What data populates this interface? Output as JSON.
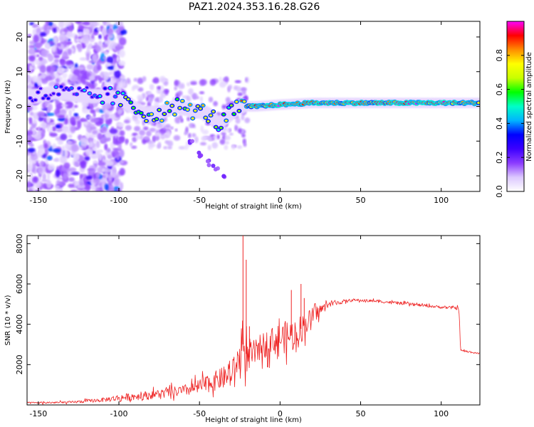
{
  "figure_title": "PAZ1.2024.353.16.28.G26",
  "chart_data": [
    {
      "type": "heatmap",
      "xlabel": "Height of straight line (km)",
      "ylabel": "Frequency (Hz)",
      "xlim": [
        -157,
        124
      ],
      "ylim": [
        -24.5,
        24.5
      ],
      "xticks": [
        -150,
        -100,
        -50,
        0,
        50,
        100
      ],
      "yticks": [
        -20,
        -10,
        0,
        10,
        20
      ],
      "colorbar": {
        "label": "Normalized spectral amplitude",
        "range": [
          0,
          1
        ],
        "ticks": [
          0.0,
          0.2,
          0.4,
          0.6,
          0.8
        ],
        "colormap": [
          "#ffffff",
          "#dcc8ff",
          "#8c3cff",
          "#3c00ff",
          "#0000ff",
          "#00b4ff",
          "#00ffc8",
          "#00ff00",
          "#c8ff00",
          "#ffff00",
          "#ff8c00",
          "#ff0000",
          "#ff00ff"
        ]
      },
      "ridge": [
        {
          "x": -150,
          "y": 3,
          "a": 0.35
        },
        {
          "x": -140,
          "y": 4,
          "a": 0.3
        },
        {
          "x": -120,
          "y": 3,
          "a": 0.35
        },
        {
          "x": -105,
          "y": 3,
          "a": 0.45
        },
        {
          "x": -95,
          "y": 1,
          "a": 0.6
        },
        {
          "x": -85,
          "y": -2,
          "a": 0.65
        },
        {
          "x": -75,
          "y": -2,
          "a": 0.7
        },
        {
          "x": -65,
          "y": 0,
          "a": 0.7
        },
        {
          "x": -55,
          "y": -1,
          "a": 0.75
        },
        {
          "x": -45,
          "y": -2,
          "a": 0.7
        },
        {
          "x": -38,
          "y": -5,
          "a": 0.6
        },
        {
          "x": -30,
          "y": -2,
          "a": 0.65
        },
        {
          "x": -25,
          "y": 0,
          "a": 0.75
        },
        {
          "x": -15,
          "y": 0,
          "a": 0.85
        },
        {
          "x": 0,
          "y": 0.5,
          "a": 0.9
        },
        {
          "x": 20,
          "y": 1,
          "a": 0.9
        },
        {
          "x": 50,
          "y": 1,
          "a": 0.85
        },
        {
          "x": 80,
          "y": 1,
          "a": 0.9
        },
        {
          "x": 100,
          "y": 1,
          "a": 0.9
        },
        {
          "x": 124,
          "y": 1,
          "a": 0.8
        }
      ],
      "mirror_branch": [
        {
          "x": -55,
          "y": -10
        },
        {
          "x": -50,
          "y": -14
        },
        {
          "x": -45,
          "y": -16
        },
        {
          "x": -40,
          "y": -18
        },
        {
          "x": -35,
          "y": -20
        }
      ]
    },
    {
      "type": "line",
      "xlabel": "Height of straight line (km)",
      "ylabel": "SNR (10 * v/v)",
      "xlim": [
        -157,
        124
      ],
      "ylim": [
        0,
        8400
      ],
      "xticks": [
        -150,
        -100,
        -50,
        0,
        50,
        100
      ],
      "yticks": [
        2000,
        4000,
        6000,
        8000
      ],
      "color": "#ee2222",
      "envelope": [
        {
          "x": -157,
          "y": 100,
          "noise": 60
        },
        {
          "x": -130,
          "y": 130,
          "noise": 80
        },
        {
          "x": -110,
          "y": 250,
          "noise": 150
        },
        {
          "x": -100,
          "y": 350,
          "noise": 250
        },
        {
          "x": -80,
          "y": 500,
          "noise": 300
        },
        {
          "x": -60,
          "y": 700,
          "noise": 400
        },
        {
          "x": -50,
          "y": 900,
          "noise": 550
        },
        {
          "x": -40,
          "y": 1200,
          "noise": 700
        },
        {
          "x": -30,
          "y": 1500,
          "noise": 900
        },
        {
          "x": -26,
          "y": 2200,
          "noise": 1000
        },
        {
          "x": -23,
          "y": 3000,
          "noise": 1800
        },
        {
          "x": -20,
          "y": 2300,
          "noise": 1000
        },
        {
          "x": -10,
          "y": 3000,
          "noise": 900
        },
        {
          "x": 0,
          "y": 3300,
          "noise": 1100
        },
        {
          "x": 10,
          "y": 3500,
          "noise": 1200
        },
        {
          "x": 20,
          "y": 4400,
          "noise": 600
        },
        {
          "x": 30,
          "y": 5000,
          "noise": 200
        },
        {
          "x": 45,
          "y": 5200,
          "noise": 100
        },
        {
          "x": 60,
          "y": 5150,
          "noise": 100
        },
        {
          "x": 80,
          "y": 5000,
          "noise": 100
        },
        {
          "x": 100,
          "y": 4850,
          "noise": 100
        },
        {
          "x": 111,
          "y": 4800,
          "noise": 120
        },
        {
          "x": 112,
          "y": 2700,
          "noise": 80
        },
        {
          "x": 124,
          "y": 2550,
          "noise": 60
        }
      ],
      "spikes": [
        {
          "x": -23,
          "y": 8400
        },
        {
          "x": -21,
          "y": 7200
        },
        {
          "x": -19,
          "y": 3900
        },
        {
          "x": 7,
          "y": 5700
        },
        {
          "x": 13,
          "y": 6000
        },
        {
          "x": 15,
          "y": 5300
        }
      ]
    }
  ]
}
